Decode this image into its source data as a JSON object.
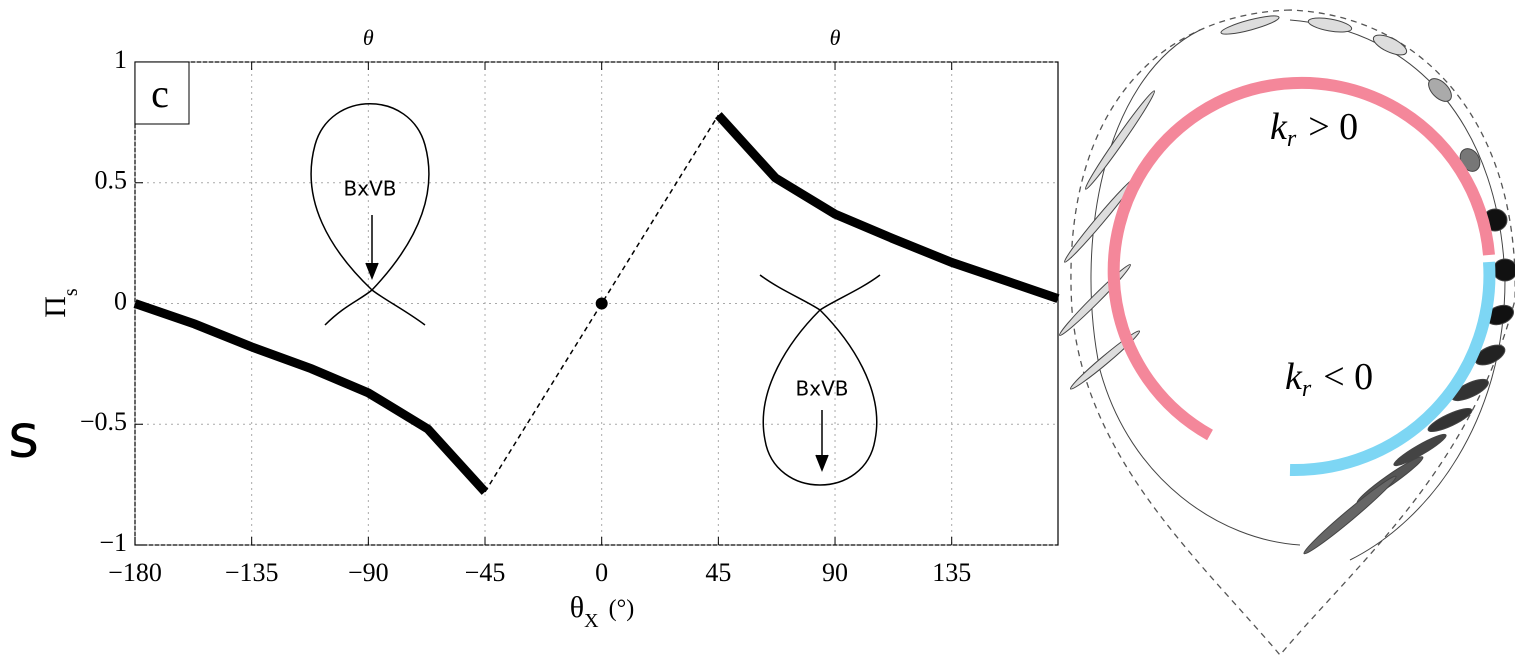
{
  "chart_data": {
    "type": "line",
    "panel_label": "c",
    "top_labels": [
      "θ",
      "θ"
    ],
    "top_label_x": [
      -90,
      90
    ],
    "ylabel": {
      "main": "Π",
      "sub": "s"
    },
    "xlabel": {
      "main": "θ",
      "sub": "X",
      "unit": "(°)"
    },
    "annotations": [
      "BxVB",
      "BxVB"
    ],
    "xlim": [
      -180,
      176
    ],
    "ylim": [
      -1,
      1
    ],
    "xticks": [
      {
        "value": -180,
        "label": "−180"
      },
      {
        "value": -135,
        "label": "−135"
      },
      {
        "value": -90,
        "label": "−90"
      },
      {
        "value": -45,
        "label": "−45"
      },
      0,
      45,
      90,
      135
    ],
    "yticks": [
      {
        "value": -1,
        "label": "−1"
      },
      {
        "value": -0.5,
        "label": "−0.5"
      },
      0,
      0.5,
      1
    ],
    "grid": true,
    "series": [
      {
        "color": "#000000",
        "x": [
          -180,
          -157,
          -135,
          -112,
          -90,
          -67,
          -45
        ],
        "values": [
          0,
          -0.085,
          -0.18,
          -0.27,
          -0.37,
          -0.52,
          -0.78
        ]
      },
      {
        "color": "#000000",
        "x": [
          45,
          67,
          90,
          112,
          135,
          157,
          176
        ],
        "values": [
          0.78,
          0.52,
          0.37,
          0.27,
          0.17,
          0.09,
          0.02
        ]
      },
      {
        "color": "#000000",
        "dashed": true,
        "x": [
          -45,
          45
        ],
        "values": [
          -0.78,
          0.78
        ]
      },
      {
        "color": "#000000",
        "marker": true,
        "x": [
          0
        ],
        "values": [
          0
        ]
      }
    ]
  },
  "left_fragment": "s",
  "diagram": {
    "labels": [
      {
        "main": "k",
        "sub": "r",
        "rel": "> 0"
      },
      {
        "main": "k",
        "sub": "r",
        "rel": "< 0"
      }
    ],
    "colors": [
      "#f4879a",
      "#7dd6f4"
    ]
  }
}
